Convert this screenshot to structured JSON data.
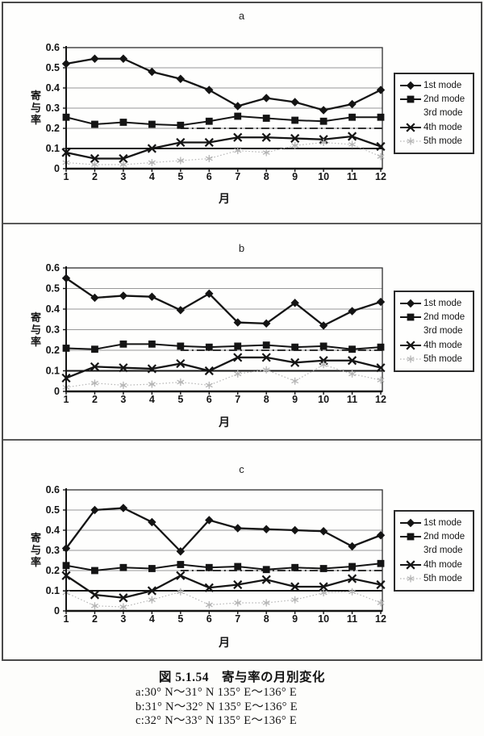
{
  "figure": {
    "caption_title": "図 5.1.54　寄与率の月別変化",
    "caption_lines": [
      "a:30° N～31° N 135° E～136° E",
      "b:31° N～32° N 135° E～136° E",
      "c:32° N～33° N 135° E～136° E"
    ]
  },
  "colors": {
    "series_black": "#141414",
    "faint_series": "#b5b5b5",
    "gridline": "#979797",
    "plot_border": "#2e2e2e",
    "panel_border": "#4a4a4a"
  },
  "chart_data": [
    {
      "type": "line",
      "title": "a",
      "xlabel": "月",
      "ylabel": "寄与率",
      "x": [
        1,
        2,
        3,
        4,
        5,
        6,
        7,
        8,
        9,
        10,
        11,
        12
      ],
      "ylim": [
        0,
        0.6
      ],
      "yticks": [
        0,
        0.1,
        0.2,
        0.3,
        0.4,
        0.5,
        0.6
      ],
      "grid": true,
      "legend_position": "right",
      "horizontal_rules": [
        {
          "value": 0.1,
          "style": "solid"
        },
        {
          "value": 0.2,
          "style": "dash-dot"
        }
      ],
      "series": [
        {
          "name": "1st mode",
          "marker": "diamond",
          "visible": true,
          "values": [
            0.52,
            0.545,
            0.545,
            0.48,
            0.445,
            0.39,
            0.31,
            0.35,
            0.33,
            0.29,
            0.32,
            0.39
          ]
        },
        {
          "name": "2nd mode",
          "marker": "square",
          "visible": true,
          "values": [
            0.255,
            0.22,
            0.23,
            0.22,
            0.215,
            0.235,
            0.26,
            0.25,
            0.24,
            0.235,
            0.255,
            0.255
          ]
        },
        {
          "name": "3rd mode",
          "marker": "none",
          "visible": false,
          "values": null
        },
        {
          "name": "4th mode",
          "marker": "x",
          "visible": true,
          "values": [
            0.08,
            0.05,
            0.05,
            0.1,
            0.13,
            0.13,
            0.155,
            0.155,
            0.15,
            0.145,
            0.16,
            0.11
          ]
        },
        {
          "name": "5th mode",
          "marker": "asterisk",
          "visible": true,
          "faint": true,
          "values": [
            0.03,
            0.02,
            0.02,
            0.03,
            0.04,
            0.05,
            0.09,
            0.08,
            0.115,
            0.13,
            0.12,
            0.06
          ]
        }
      ]
    },
    {
      "type": "line",
      "title": "b",
      "xlabel": "月",
      "ylabel": "寄与率",
      "x": [
        1,
        2,
        3,
        4,
        5,
        6,
        7,
        8,
        9,
        10,
        11,
        12
      ],
      "ylim": [
        0,
        0.6
      ],
      "yticks": [
        0,
        0.1,
        0.2,
        0.3,
        0.4,
        0.5,
        0.6
      ],
      "grid": true,
      "legend_position": "right",
      "horizontal_rules": [
        {
          "value": 0.1,
          "style": "solid"
        },
        {
          "value": 0.2,
          "style": "dash-dot"
        }
      ],
      "series": [
        {
          "name": "1st mode",
          "marker": "diamond",
          "visible": true,
          "values": [
            0.55,
            0.455,
            0.465,
            0.46,
            0.395,
            0.475,
            0.335,
            0.33,
            0.43,
            0.32,
            0.39,
            0.435
          ]
        },
        {
          "name": "2nd mode",
          "marker": "square",
          "visible": true,
          "values": [
            0.21,
            0.205,
            0.23,
            0.23,
            0.22,
            0.215,
            0.22,
            0.225,
            0.215,
            0.22,
            0.205,
            0.215
          ]
        },
        {
          "name": "3rd mode",
          "marker": "none",
          "visible": false,
          "values": null
        },
        {
          "name": "4th mode",
          "marker": "x",
          "visible": true,
          "values": [
            0.065,
            0.12,
            0.115,
            0.11,
            0.135,
            0.1,
            0.165,
            0.165,
            0.14,
            0.15,
            0.15,
            0.115
          ]
        },
        {
          "name": "5th mode",
          "marker": "asterisk",
          "visible": true,
          "faint": true,
          "values": [
            0.02,
            0.04,
            0.03,
            0.035,
            0.045,
            0.03,
            0.085,
            0.105,
            0.05,
            0.13,
            0.085,
            0.055
          ]
        }
      ]
    },
    {
      "type": "line",
      "title": "c",
      "xlabel": "月",
      "ylabel": "寄与率",
      "x": [
        1,
        2,
        3,
        4,
        5,
        6,
        7,
        8,
        9,
        10,
        11,
        12
      ],
      "ylim": [
        0,
        0.6
      ],
      "yticks": [
        0,
        0.1,
        0.2,
        0.3,
        0.4,
        0.5,
        0.6
      ],
      "grid": true,
      "legend_position": "right",
      "horizontal_rules": [
        {
          "value": 0.1,
          "style": "solid"
        },
        {
          "value": 0.2,
          "style": "dash-dot"
        }
      ],
      "series": [
        {
          "name": "1st mode",
          "marker": "diamond",
          "visible": true,
          "values": [
            0.31,
            0.5,
            0.51,
            0.44,
            0.295,
            0.45,
            0.41,
            0.405,
            0.4,
            0.395,
            0.32,
            0.375
          ]
        },
        {
          "name": "2nd mode",
          "marker": "square",
          "visible": true,
          "values": [
            0.225,
            0.2,
            0.215,
            0.21,
            0.23,
            0.215,
            0.22,
            0.205,
            0.215,
            0.21,
            0.22,
            0.235
          ]
        },
        {
          "name": "3rd mode",
          "marker": "none",
          "visible": false,
          "values": null
        },
        {
          "name": "4th mode",
          "marker": "x",
          "visible": true,
          "values": [
            0.175,
            0.08,
            0.065,
            0.1,
            0.175,
            0.115,
            0.13,
            0.155,
            0.12,
            0.12,
            0.16,
            0.13
          ]
        },
        {
          "name": "5th mode",
          "marker": "asterisk",
          "visible": true,
          "faint": true,
          "values": [
            0.09,
            0.025,
            0.02,
            0.055,
            0.095,
            0.03,
            0.04,
            0.04,
            0.055,
            0.09,
            0.095,
            0.04
          ]
        }
      ]
    }
  ]
}
